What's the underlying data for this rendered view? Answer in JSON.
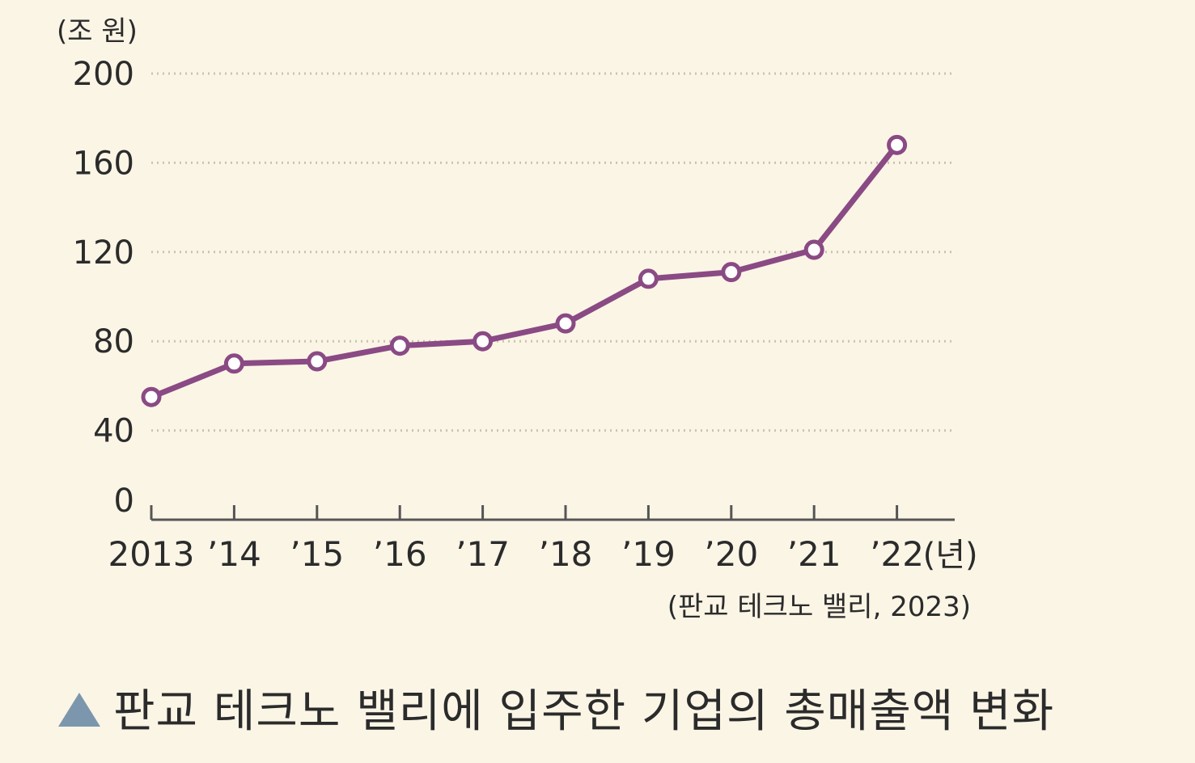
{
  "colors": {
    "background": "#fbf5e6",
    "line": "#8a4a84",
    "marker_fill": "#ffffff",
    "grid": "#c9c3b4",
    "axis": "#555555",
    "caption_marker": "#7c97ad"
  },
  "caption": {
    "marker_icon": "triangle-up-icon",
    "text": "판교 테크노 밸리에 입주한 기업의 총매출액 변화"
  },
  "chart_data": {
    "type": "line",
    "title": "",
    "ylabel": "(조 원)",
    "xlabel": "",
    "x_unit_label": "(년)",
    "source": "(판교 테크노 밸리, 2023)",
    "categories": [
      "2013",
      "’14",
      "’15",
      "’16",
      "’17",
      "’18",
      "’19",
      "’20",
      "’21",
      "’22"
    ],
    "series": [
      {
        "name": "",
        "values": [
          55,
          70,
          71,
          78,
          80,
          88,
          108,
          111,
          121,
          168
        ]
      }
    ],
    "ylim": [
      0,
      200
    ],
    "yticks": [
      0,
      40,
      80,
      120,
      160,
      200
    ],
    "grid": true,
    "grid_style": "dotted",
    "legend": "none"
  }
}
